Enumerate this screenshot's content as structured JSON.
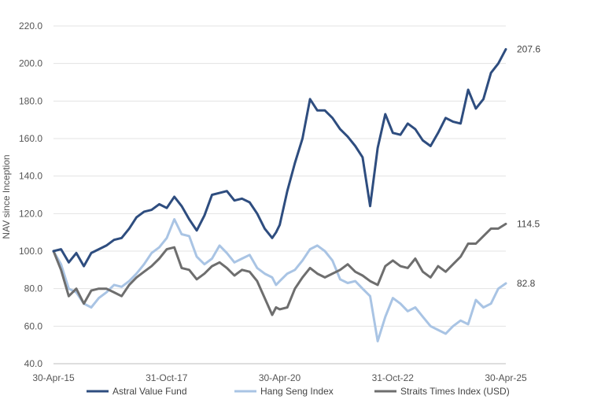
{
  "chart_data": {
    "type": "line",
    "ylabel": "NAV since Inception",
    "ylim": [
      40,
      220
    ],
    "yticks": [
      "40.0",
      "60.0",
      "80.0",
      "100.0",
      "120.0",
      "140.0",
      "160.0",
      "180.0",
      "200.0",
      "220.0"
    ],
    "xticks": [
      "30-Apr-15",
      "31-Oct-17",
      "30-Apr-20",
      "31-Oct-22",
      "30-Apr-25"
    ],
    "x_range": [
      "2015-04-30",
      "2025-04-30"
    ],
    "grid": "horizontal",
    "legend_position": "bottom",
    "series": [
      {
        "name": "Astral Value Fund",
        "color": "#2e4d7f",
        "end_label": "207.6",
        "x": [
          "2015-04-30",
          "2015-06-30",
          "2015-08-31",
          "2015-10-31",
          "2015-12-31",
          "2016-02-29",
          "2016-04-30",
          "2016-06-30",
          "2016-08-31",
          "2016-10-31",
          "2016-12-31",
          "2017-02-28",
          "2017-04-30",
          "2017-06-30",
          "2017-08-31",
          "2017-10-31",
          "2017-12-31",
          "2018-02-28",
          "2018-04-30",
          "2018-06-30",
          "2018-08-31",
          "2018-10-31",
          "2018-12-31",
          "2019-02-28",
          "2019-04-30",
          "2019-06-30",
          "2019-08-31",
          "2019-10-31",
          "2019-12-31",
          "2020-02-29",
          "2020-03-31",
          "2020-04-30",
          "2020-06-30",
          "2020-08-31",
          "2020-10-31",
          "2020-12-31",
          "2021-02-28",
          "2021-04-30",
          "2021-06-30",
          "2021-08-31",
          "2021-10-31",
          "2021-12-31",
          "2022-02-28",
          "2022-04-30",
          "2022-06-30",
          "2022-08-31",
          "2022-10-31",
          "2022-12-31",
          "2023-02-28",
          "2023-04-30",
          "2023-06-30",
          "2023-08-31",
          "2023-10-31",
          "2023-12-31",
          "2024-02-29",
          "2024-04-30",
          "2024-06-30",
          "2024-08-31",
          "2024-10-31",
          "2024-12-31",
          "2025-02-28",
          "2025-04-30"
        ],
        "values": [
          100,
          101,
          94,
          99,
          92,
          99,
          101,
          103,
          106,
          107,
          112,
          118,
          121,
          122,
          125,
          123,
          129,
          124,
          117,
          111,
          119,
          130,
          131,
          132,
          127,
          128,
          126,
          120,
          112,
          107,
          110,
          114,
          132,
          147,
          160,
          181,
          175,
          175,
          171,
          165,
          161,
          156,
          150,
          124,
          155,
          173,
          163,
          162,
          168,
          165,
          159,
          156,
          163,
          171,
          169,
          168,
          186,
          176,
          181,
          195,
          200,
          207.6
        ]
      },
      {
        "name": "Hang Seng Index",
        "color": "#a9c4e4",
        "end_label": "82.8",
        "x": [
          "2015-04-30",
          "2015-06-30",
          "2015-08-31",
          "2015-10-31",
          "2015-12-31",
          "2016-02-29",
          "2016-04-30",
          "2016-06-30",
          "2016-08-31",
          "2016-10-31",
          "2016-12-31",
          "2017-02-28",
          "2017-04-30",
          "2017-06-30",
          "2017-08-31",
          "2017-10-31",
          "2017-12-31",
          "2018-02-28",
          "2018-04-30",
          "2018-06-30",
          "2018-08-31",
          "2018-10-31",
          "2018-12-31",
          "2019-02-28",
          "2019-04-30",
          "2019-06-30",
          "2019-08-31",
          "2019-10-31",
          "2019-12-31",
          "2020-02-29",
          "2020-03-31",
          "2020-04-30",
          "2020-06-30",
          "2020-08-31",
          "2020-10-31",
          "2020-12-31",
          "2021-02-28",
          "2021-04-30",
          "2021-06-30",
          "2021-08-31",
          "2021-10-31",
          "2021-12-31",
          "2022-02-28",
          "2022-04-30",
          "2022-06-30",
          "2022-08-31",
          "2022-10-31",
          "2022-12-31",
          "2023-02-28",
          "2023-04-30",
          "2023-06-30",
          "2023-08-31",
          "2023-10-31",
          "2023-12-31",
          "2024-02-29",
          "2024-04-30",
          "2024-06-30",
          "2024-08-31",
          "2024-10-31",
          "2024-12-31",
          "2025-02-28",
          "2025-04-30"
        ],
        "values": [
          100,
          93,
          80,
          78,
          72,
          70,
          75,
          78,
          82,
          81,
          84,
          88,
          93,
          99,
          102,
          107,
          117,
          109,
          108,
          97,
          93,
          96,
          103,
          99,
          94,
          96,
          98,
          91,
          88,
          86,
          82,
          84,
          88,
          90,
          95,
          101,
          103,
          100,
          95,
          85,
          83,
          84,
          80,
          76,
          52,
          65,
          75,
          72,
          68,
          70,
          65,
          60,
          58,
          56,
          60,
          63,
          61,
          74,
          70,
          72,
          80,
          82.8
        ]
      },
      {
        "name": "Straits Times Index (USD)",
        "color": "#6e6e6e",
        "end_label": "114.5",
        "x": [
          "2015-04-30",
          "2015-06-30",
          "2015-08-31",
          "2015-10-31",
          "2015-12-31",
          "2016-02-29",
          "2016-04-30",
          "2016-06-30",
          "2016-08-31",
          "2016-10-31",
          "2016-12-31",
          "2017-02-28",
          "2017-04-30",
          "2017-06-30",
          "2017-08-31",
          "2017-10-31",
          "2017-12-31",
          "2018-02-28",
          "2018-04-30",
          "2018-06-30",
          "2018-08-31",
          "2018-10-31",
          "2018-12-31",
          "2019-02-28",
          "2019-04-30",
          "2019-06-30",
          "2019-08-31",
          "2019-10-31",
          "2019-12-31",
          "2020-02-29",
          "2020-03-31",
          "2020-04-30",
          "2020-06-30",
          "2020-08-31",
          "2020-10-31",
          "2020-12-31",
          "2021-02-28",
          "2021-04-30",
          "2021-06-30",
          "2021-08-31",
          "2021-10-31",
          "2021-12-31",
          "2022-02-28",
          "2022-04-30",
          "2022-06-30",
          "2022-08-31",
          "2022-10-31",
          "2022-12-31",
          "2023-02-28",
          "2023-04-30",
          "2023-06-30",
          "2023-08-31",
          "2023-10-31",
          "2023-12-31",
          "2024-02-29",
          "2024-04-30",
          "2024-06-30",
          "2024-08-31",
          "2024-10-31",
          "2024-12-31",
          "2025-02-28",
          "2025-04-30"
        ],
        "values": [
          100,
          90,
          76,
          80,
          72,
          79,
          80,
          80,
          78,
          76,
          82,
          86,
          89,
          92,
          96,
          101,
          102,
          91,
          90,
          85,
          88,
          92,
          94,
          91,
          87,
          90,
          89,
          84,
          75,
          66,
          70,
          69,
          70,
          80,
          86,
          91,
          88,
          86,
          88,
          90,
          93,
          89,
          87,
          84,
          82,
          92,
          95,
          92,
          91,
          96,
          89,
          86,
          92,
          89,
          93,
          97,
          104,
          104,
          108,
          112,
          112,
          114.5
        ]
      }
    ]
  }
}
